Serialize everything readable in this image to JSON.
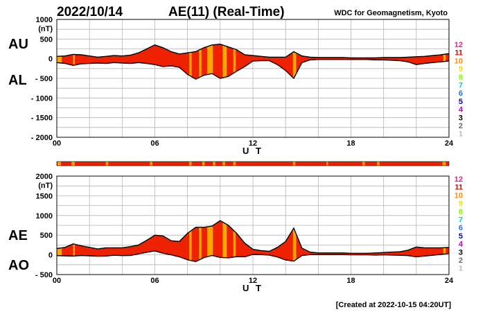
{
  "header": {
    "date": "2022/10/14",
    "title": "AE(11) (Real-Time)",
    "source": "WDC for Geomagnetism, Kyoto"
  },
  "footer": {
    "created": "[Created at 2022-10-15 04:20UT]"
  },
  "level_legend": {
    "labels": [
      "12",
      "11",
      "10",
      "9",
      "8",
      "7",
      "6",
      "5",
      "4",
      "3",
      "2",
      "1"
    ],
    "colors": [
      "#ff1493",
      "#e00000",
      "#ff8c00",
      "#e6e600",
      "#7cfc00",
      "#00cfcf",
      "#1e6fff",
      "#0000c0",
      "#c000c0",
      "#000000",
      "#666666",
      "#bbbbbb"
    ]
  },
  "colors": {
    "red": "#ee2200",
    "orange": "#ffa500",
    "line": "#000000",
    "grid": "#b4b4b4"
  },
  "chart_data": [
    {
      "type": "area",
      "panel_labels": [
        "AU",
        "AL"
      ],
      "unit": "(nT)",
      "xlabel": "U T",
      "x_ticks": [
        "00",
        "06",
        "12",
        "18",
        "24"
      ],
      "xlim": [
        0,
        24
      ],
      "ylim": [
        -2000,
        1000
      ],
      "y_ticks": [
        "1000",
        "500",
        "0",
        "- 500",
        "- 1000",
        "- 1500",
        "- 2000"
      ],
      "grid": true,
      "series": [
        {
          "name": "AU",
          "x": [
            0,
            0.5,
            1,
            1.5,
            2,
            2.5,
            3,
            3.5,
            4,
            4.5,
            5,
            5.5,
            6,
            6.5,
            7,
            7.5,
            8,
            8.5,
            9,
            9.5,
            10,
            10.5,
            11,
            11.5,
            12,
            12.5,
            13,
            13.5,
            14,
            14.5,
            15,
            15.5,
            16,
            16.5,
            17,
            17.5,
            18,
            18.5,
            19,
            19.5,
            20,
            20.5,
            21,
            21.5,
            22,
            22.5,
            23,
            23.5,
            24
          ],
          "values": [
            60,
            70,
            110,
            100,
            70,
            40,
            60,
            80,
            70,
            90,
            150,
            250,
            350,
            280,
            180,
            120,
            150,
            180,
            280,
            350,
            370,
            300,
            230,
            100,
            80,
            60,
            40,
            40,
            40,
            180,
            70,
            40,
            30,
            30,
            30,
            30,
            20,
            20,
            20,
            20,
            30,
            30,
            30,
            40,
            50,
            60,
            80,
            100,
            130
          ]
        },
        {
          "name": "AL",
          "x": [
            0,
            0.5,
            1,
            1.5,
            2,
            2.5,
            3,
            3.5,
            4,
            4.5,
            5,
            5.5,
            6,
            6.5,
            7,
            7.5,
            8,
            8.5,
            9,
            9.5,
            10,
            10.5,
            11,
            11.5,
            12,
            12.5,
            13,
            13.5,
            14,
            14.5,
            15,
            15.5,
            16,
            16.5,
            17,
            17.5,
            18,
            18.5,
            19,
            19.5,
            20,
            20.5,
            21,
            21.5,
            22,
            22.5,
            23,
            23.5,
            24
          ],
          "values": [
            -100,
            -120,
            -170,
            -130,
            -120,
            -110,
            -120,
            -100,
            -110,
            -120,
            -100,
            -120,
            -150,
            -200,
            -180,
            -220,
            -400,
            -520,
            -420,
            -380,
            -500,
            -450,
            -320,
            -200,
            -60,
            -50,
            -50,
            -150,
            -300,
            -500,
            -100,
            -30,
            -20,
            -20,
            -20,
            -20,
            -20,
            -20,
            -20,
            -30,
            -30,
            -40,
            -50,
            -80,
            -150,
            -120,
            -100,
            -80,
            -60
          ]
        }
      ]
    },
    {
      "type": "area",
      "panel_labels": [
        "AE",
        "AO"
      ],
      "unit": "(nT)",
      "xlabel": "U T",
      "x_ticks": [
        "00",
        "06",
        "12",
        "18",
        "24"
      ],
      "xlim": [
        0,
        24
      ],
      "ylim": [
        -500,
        2000
      ],
      "y_ticks": [
        "2000",
        "1500",
        "1000",
        "500",
        "0",
        "- 500"
      ],
      "grid": true,
      "series": [
        {
          "name": "AE",
          "x": [
            0,
            0.5,
            1,
            1.5,
            2,
            2.5,
            3,
            3.5,
            4,
            4.5,
            5,
            5.5,
            6,
            6.5,
            7,
            7.5,
            8,
            8.5,
            9,
            9.5,
            10,
            10.5,
            11,
            11.5,
            12,
            12.5,
            13,
            13.5,
            14,
            14.5,
            15,
            15.5,
            16,
            16.5,
            17,
            17.5,
            18,
            18.5,
            19,
            19.5,
            20,
            20.5,
            21,
            21.5,
            22,
            22.5,
            23,
            23.5,
            24
          ],
          "values": [
            160,
            190,
            280,
            230,
            190,
            150,
            180,
            180,
            180,
            210,
            250,
            370,
            500,
            480,
            360,
            340,
            550,
            700,
            700,
            730,
            870,
            750,
            550,
            300,
            140,
            110,
            90,
            190,
            340,
            680,
            170,
            70,
            50,
            50,
            50,
            50,
            40,
            40,
            40,
            50,
            60,
            70,
            80,
            120,
            200,
            180,
            180,
            180,
            190
          ]
        },
        {
          "name": "AO",
          "x": [
            0,
            0.5,
            1,
            1.5,
            2,
            2.5,
            3,
            3.5,
            4,
            4.5,
            5,
            5.5,
            6,
            6.5,
            7,
            7.5,
            8,
            8.5,
            9,
            9.5,
            10,
            10.5,
            11,
            11.5,
            12,
            12.5,
            13,
            13.5,
            14,
            14.5,
            15,
            15.5,
            16,
            16.5,
            17,
            17.5,
            18,
            18.5,
            19,
            19.5,
            20,
            20.5,
            21,
            21.5,
            22,
            22.5,
            23,
            23.5,
            24
          ],
          "values": [
            -20,
            -25,
            -30,
            -15,
            -25,
            -35,
            -30,
            -10,
            -20,
            -15,
            25,
            65,
            100,
            40,
            0,
            -50,
            -125,
            -170,
            -70,
            -15,
            -65,
            -75,
            -45,
            -50,
            10,
            5,
            -5,
            -55,
            -130,
            -160,
            -15,
            5,
            5,
            5,
            5,
            5,
            0,
            0,
            0,
            -5,
            0,
            -5,
            -10,
            -20,
            -50,
            -30,
            -10,
            10,
            35
          ]
        }
      ]
    }
  ]
}
